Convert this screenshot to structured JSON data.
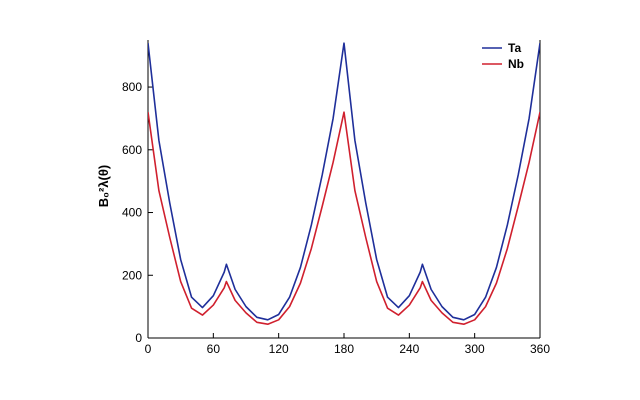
{
  "chart_data": {
    "type": "line",
    "title": "",
    "xlabel": "",
    "ylabel": "B₀²λ(θ)",
    "xlim": [
      0,
      360
    ],
    "ylim": [
      0,
      950
    ],
    "x_ticks": [
      "0",
      "60",
      "120",
      "180",
      "240",
      "300",
      "360"
    ],
    "y_ticks": [
      "0",
      "200",
      "400",
      "600",
      "800"
    ],
    "legend_position": "top-right",
    "series": [
      {
        "name": "Ta",
        "color": "#1f2f9a",
        "x": [
          0,
          10,
          20,
          30,
          40,
          50,
          60,
          70,
          72,
          80,
          90,
          100,
          110,
          120,
          130,
          140,
          150,
          160,
          170,
          180,
          190,
          200,
          210,
          220,
          230,
          240,
          250,
          252,
          260,
          270,
          280,
          290,
          300,
          310,
          320,
          330,
          340,
          350,
          360
        ],
        "y": [
          940,
          630,
          430,
          250,
          130,
          97,
          135,
          210,
          235,
          155,
          100,
          66,
          58,
          75,
          130,
          225,
          360,
          520,
          700,
          940,
          630,
          430,
          250,
          130,
          97,
          135,
          210,
          235,
          155,
          100,
          66,
          58,
          75,
          130,
          225,
          360,
          520,
          700,
          940
        ]
      },
      {
        "name": "Nb",
        "color": "#d0202e",
        "x": [
          0,
          10,
          20,
          30,
          40,
          50,
          60,
          70,
          72,
          80,
          90,
          100,
          110,
          120,
          130,
          140,
          150,
          160,
          170,
          180,
          190,
          200,
          210,
          220,
          230,
          240,
          250,
          252,
          260,
          270,
          280,
          290,
          300,
          310,
          320,
          330,
          340,
          350,
          360
        ],
        "y": [
          720,
          470,
          320,
          180,
          95,
          73,
          105,
          160,
          180,
          120,
          80,
          50,
          44,
          58,
          100,
          175,
          285,
          420,
          560,
          720,
          470,
          320,
          180,
          95,
          73,
          105,
          160,
          180,
          120,
          80,
          50,
          44,
          58,
          100,
          175,
          285,
          420,
          560,
          720
        ]
      }
    ]
  }
}
